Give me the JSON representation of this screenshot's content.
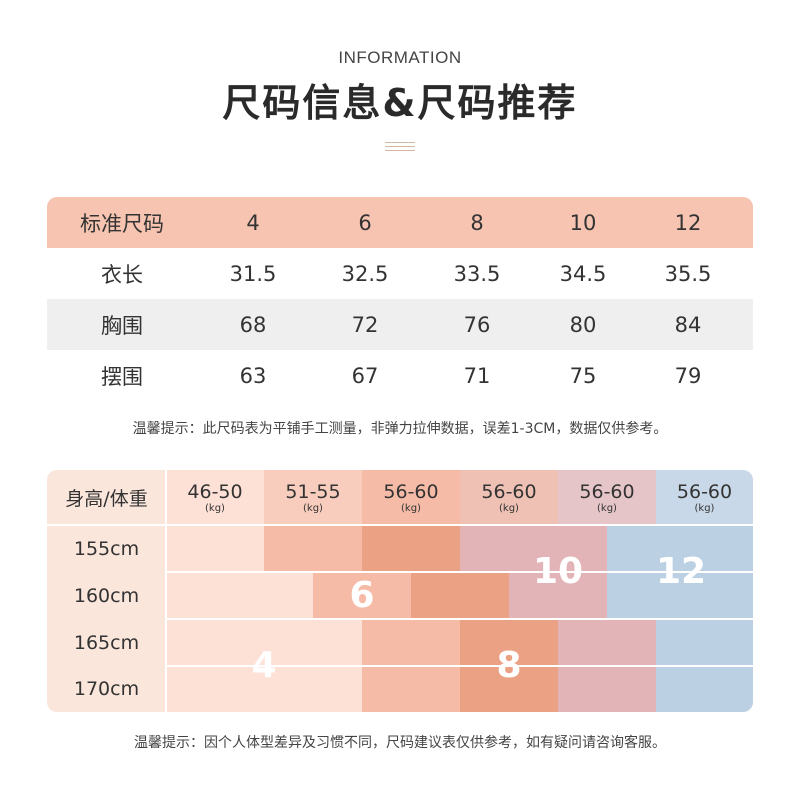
{
  "header": {
    "eyebrow": "INFORMATION",
    "title": "尺码信息&尺码推荐"
  },
  "size_table": {
    "header_label": "标准尺码",
    "sizes": [
      "4",
      "6",
      "8",
      "10",
      "12"
    ],
    "rows": [
      {
        "label": "衣长",
        "values": [
          "31.5",
          "32.5",
          "33.5",
          "34.5",
          "35.5"
        ]
      },
      {
        "label": "胸围",
        "values": [
          "68",
          "72",
          "76",
          "80",
          "84"
        ]
      },
      {
        "label": "摆围",
        "values": [
          "63",
          "67",
          "71",
          "75",
          "79"
        ]
      }
    ],
    "colors": {
      "header_bg": "#f7c4b1",
      "alt_row_bg": "#efefef"
    }
  },
  "tip_measurement": "温馨提示：此尺码表为平铺手工测量，非弹力拉伸数据，误差1-3CM，数据仅供参考。",
  "recommendation": {
    "corner_label": "身高/体重",
    "weight_ranges": [
      {
        "range": "46-50",
        "unit": "(kg)"
      },
      {
        "range": "51-55",
        "unit": "(kg)"
      },
      {
        "range": "56-60",
        "unit": "(kg)"
      },
      {
        "range": "56-60",
        "unit": "(kg)"
      },
      {
        "range": "56-60",
        "unit": "(kg)"
      },
      {
        "range": "56-60",
        "unit": "(kg)"
      }
    ],
    "heights": [
      "155cm",
      "160cm",
      "165cm",
      "170cm"
    ],
    "zones": [
      {
        "size": "4",
        "color": "#fde0d6"
      },
      {
        "size": "6",
        "color": "#f6bba7"
      },
      {
        "size": "8",
        "color": "#eba184"
      },
      {
        "size": "10",
        "color": "#e2b4b8"
      },
      {
        "size": "12",
        "color": "#bcd0e4"
      }
    ]
  },
  "tip_recommendation": "温馨提示：因个人体型差异及习惯不同，尺码建议表仅供参考，如有疑问请咨询客服。"
}
